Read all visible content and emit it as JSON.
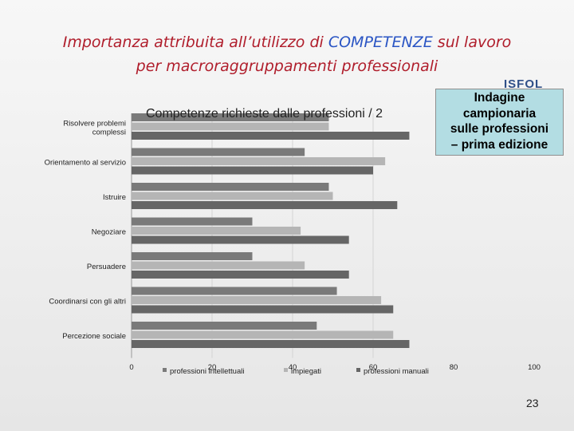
{
  "slide": {
    "title_part1": "Importanza attribuita all’utilizzo di ",
    "title_highlight": "COMPETENZE",
    "title_part2": " sul lavoro",
    "title_line2": "per macroraggruppamenti professionali",
    "logo_text": "ISFOL",
    "callout_lines": [
      "Indagine",
      "campionaria",
      "sulle professioni",
      "– prima edizione"
    ],
    "page_number": "23"
  },
  "colors": {
    "title": "#b01e2c",
    "highlight": "#2a55c4",
    "callout_bg": "#b3dde3",
    "series": [
      "#7a7a7a",
      "#b5b5b5",
      "#666666"
    ]
  },
  "chart_data": {
    "type": "bar",
    "orientation": "horizontal",
    "title": "Competenze richieste dalle professioni / 2",
    "categories": [
      "Risolvere problemi complessi",
      "Orientamento al servizio",
      "Istruire",
      "Negoziare",
      "Persuadere",
      "Coordinarsi con gli altri",
      "Percezione sociale"
    ],
    "series": [
      {
        "name": "professioni intellettuali",
        "values": [
          49,
          43,
          49,
          30,
          30,
          51,
          46
        ]
      },
      {
        "name": "impiegati",
        "values": [
          49,
          63,
          50,
          42,
          43,
          62,
          65
        ]
      },
      {
        "name": "professioni manuali",
        "values": [
          69,
          60,
          66,
          54,
          54,
          65,
          69
        ]
      }
    ],
    "xlim": [
      0,
      100
    ],
    "xticks": [
      0,
      20,
      40,
      60,
      80,
      100
    ],
    "grid": true,
    "legend_position": "bottom"
  }
}
